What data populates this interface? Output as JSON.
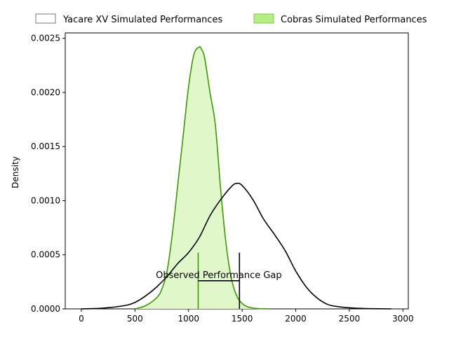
{
  "chart_data": {
    "type": "area",
    "title": "",
    "xlabel": "",
    "ylabel": "Density",
    "xlim": [
      -150,
      3050
    ],
    "ylim": [
      0,
      0.00255
    ],
    "xticks": [
      0,
      500,
      1000,
      1500,
      2000,
      2500,
      3000
    ],
    "yticks": [
      0.0,
      0.0005,
      0.001,
      0.0015,
      0.002,
      0.0025
    ],
    "xtick_labels": [
      "0",
      "500",
      "1000",
      "1500",
      "2000",
      "2500",
      "3000"
    ],
    "ytick_labels": [
      "0.0000",
      "0.0005",
      "0.0010",
      "0.0015",
      "0.0020",
      "0.0025"
    ],
    "legend_position": "top, above plot",
    "series": [
      {
        "name": "Yacare XV Simulated Performances",
        "kind": "kde-line",
        "line_color": "#000000",
        "fill": "none",
        "x": [
          0,
          200,
          400,
          500,
          600,
          700,
          800,
          900,
          1000,
          1100,
          1200,
          1300,
          1400,
          1450,
          1500,
          1600,
          1700,
          1800,
          1900,
          2000,
          2100,
          2200,
          2300,
          2400,
          2500,
          2600,
          2700,
          2890
        ],
        "y": [
          0.0,
          7e-06,
          3e-05,
          6e-05,
          0.00012,
          0.0002,
          0.0003,
          0.00042,
          0.00052,
          0.00066,
          0.00086,
          0.00101,
          0.00113,
          0.00116,
          0.00114,
          0.00101,
          0.00083,
          0.00069,
          0.00054,
          0.00035,
          0.0002,
          0.0001,
          4e-05,
          2e-05,
          1e-05,
          5e-06,
          2e-06,
          0.0
        ]
      },
      {
        "name": "Cobras Simulated Performances",
        "kind": "kde-filled",
        "line_color": "#3a9a00",
        "fill_color": "#ddf7c6",
        "x": [
          500,
          600,
          700,
          750,
          800,
          850,
          900,
          950,
          1000,
          1050,
          1100,
          1120,
          1150,
          1200,
          1250,
          1300,
          1350,
          1400,
          1450,
          1500,
          1550,
          1600,
          1650,
          1700,
          1760
        ],
        "y": [
          0.0,
          3e-05,
          0.0001,
          0.00018,
          0.00035,
          0.0007,
          0.00115,
          0.0016,
          0.00205,
          0.00235,
          0.00242,
          0.0024,
          0.00232,
          0.002,
          0.0017,
          0.0011,
          0.0006,
          0.00028,
          0.00012,
          5e-05,
          2e-05,
          8e-06,
          3e-06,
          1e-06,
          0.0
        ]
      }
    ],
    "annotation": {
      "text": "Observed Performance Gap",
      "cobras_marker_x": 1090,
      "yacare_marker_x": 1475,
      "marker_height": 0.00052,
      "gap_line_y": 0.00026
    }
  }
}
